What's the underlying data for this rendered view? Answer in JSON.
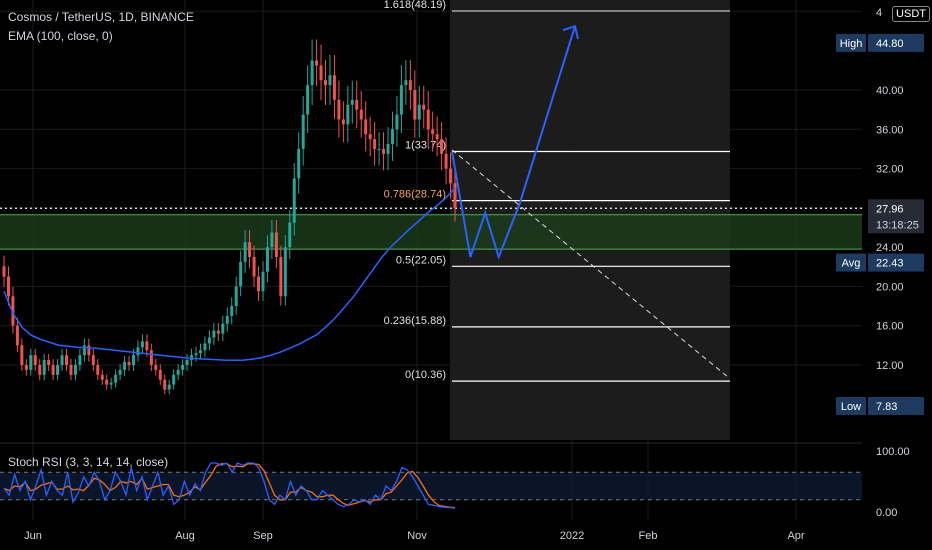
{
  "header": {
    "symbol_line": "Cosmos / TetherUS, 1D, BINANCE",
    "indicator_line": "EMA (100, close, 0)",
    "currency": "USDT",
    "rsi_label": "Stoch RSI (3, 3, 14, 14, close)"
  },
  "colors": {
    "background": "#000000",
    "up": "#26a69a",
    "down": "#ef5350",
    "ema": "#2962ff",
    "projection": "#2962ff",
    "zone": "#1b3d1b",
    "fib_line": "#ffffff",
    "fib_618": "#c0c0c0",
    "fib_786_label": "#f7a35c",
    "rsi_k": "#2962ff",
    "rsi_d": "#ff6d00"
  },
  "chart_data": {
    "type": "candlestick",
    "price_axis": {
      "ticks": [
        "4",
        "40.00",
        "36.00",
        "32.00",
        "28.00",
        "24.00",
        "20.00",
        "16.00",
        "12.00"
      ],
      "tick_values": [
        48,
        40,
        36,
        32,
        28,
        24,
        20,
        16,
        12
      ],
      "badges": [
        {
          "label": "High",
          "value": "44.80",
          "y": 44.8
        },
        {
          "label": "",
          "value": "27.96",
          "sub": "13:18:25",
          "y": 27.96
        },
        {
          "label": "Avg",
          "value": "22.43",
          "y": 22.43
        },
        {
          "label": "Low",
          "value": "7.83",
          "y": 7.83
        }
      ]
    },
    "time_axis": [
      "Jun",
      "Aug",
      "Sep",
      "Nov",
      "2022",
      "Feb",
      "Apr"
    ],
    "fib_levels": [
      {
        "label": "1.618(48.19)",
        "price": 48.19
      },
      {
        "label": "1(33.74)",
        "price": 33.74
      },
      {
        "label": "0.786(28.74)",
        "price": 28.74
      },
      {
        "label": "0.5(22.05)",
        "price": 22.05
      },
      {
        "label": "0.236(15.88)",
        "price": 15.88
      },
      {
        "label": "0(10.36)",
        "price": 10.36
      }
    ],
    "support_zone": [
      23.8,
      27.3
    ],
    "last_price": 27.96,
    "close_series": [
      21,
      19,
      16,
      14,
      12,
      11.5,
      13,
      12,
      11,
      12.5,
      12,
      11,
      12,
      13,
      12,
      11,
      12,
      13,
      14,
      13,
      12,
      11,
      10.5,
      10,
      10.2,
      11,
      11.5,
      12.3,
      12,
      13,
      13.8,
      14.4,
      13.5,
      12,
      11.5,
      10.5,
      9.5,
      10,
      11,
      11.5,
      12,
      12.5,
      13,
      13.2,
      13.5,
      14.2,
      14.8,
      15.5,
      15.2,
      16.2,
      17,
      18,
      20,
      22.5,
      24.5,
      23,
      21,
      19.5,
      21.5,
      24,
      25.5,
      23,
      19,
      24,
      26.5,
      31,
      34,
      37.5,
      40.5,
      43,
      42.5,
      41,
      40.5,
      41.5,
      39,
      37,
      36.5,
      38.5,
      39,
      38,
      37,
      35.5,
      35,
      34,
      34,
      33.5,
      34.5,
      36,
      37.5,
      40.5,
      41,
      40,
      37,
      38.5,
      38,
      36,
      35.5,
      35,
      33.5,
      32,
      30.5,
      28
    ],
    "ema_series": [
      19.5,
      17.2,
      15.8,
      15,
      14.6,
      14.3,
      14,
      13.9,
      13.8,
      13.75,
      13.7,
      13.6,
      13.5,
      13.4,
      13.3,
      13.2,
      13.1,
      13,
      12.9,
      12.8,
      12.7,
      12.65,
      12.6,
      12.55,
      12.5,
      12.48,
      12.5,
      12.6,
      12.75,
      13,
      13.3,
      13.7,
      14.1,
      14.6,
      15.1,
      15.9,
      16.8,
      17.9,
      19,
      20.3,
      21.6,
      22.9,
      24,
      24.9,
      25.8,
      26.6,
      27.5,
      28.2,
      29,
      30
    ],
    "projection_path": [
      [
        33.74,
        0
      ],
      [
        23,
        0.15
      ],
      [
        27.5,
        0.27
      ],
      [
        23,
        0.38
      ],
      [
        28.4,
        0.55
      ],
      [
        46.5,
        1
      ]
    ],
    "trend_line": [
      [
        33.9,
        0
      ],
      [
        10.6,
        1
      ]
    ],
    "stoch_rsi": {
      "ticks": [
        "100.00",
        "0.00"
      ],
      "bands": [
        80,
        20
      ],
      "k": [
        45,
        30,
        75,
        40,
        60,
        20,
        50,
        85,
        30,
        60,
        40,
        30,
        80,
        15,
        35,
        70,
        50,
        80,
        60,
        20,
        40,
        80,
        60,
        30,
        90,
        40,
        70,
        20,
        50,
        80,
        30,
        50,
        10,
        20,
        60,
        30,
        55,
        40,
        80,
        100,
        100,
        95,
        100,
        80,
        100,
        95,
        100,
        100,
        90,
        60,
        20,
        10,
        30,
        20,
        60,
        30,
        50,
        40,
        20,
        20,
        40,
        30,
        20,
        10,
        5,
        10,
        20,
        15,
        20,
        10,
        30,
        20,
        50,
        40,
        60,
        90,
        85,
        70,
        50,
        30,
        10,
        8,
        5,
        4,
        3,
        2
      ]
    }
  }
}
